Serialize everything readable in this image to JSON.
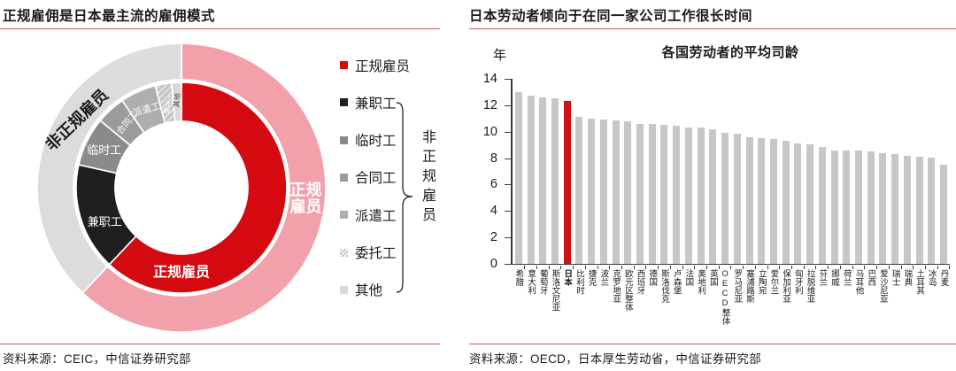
{
  "left_panel": {
    "title": "正规雇佣是日本最主流的雇佣模式",
    "source": "资料来源：CEIC，中信证券研究部"
  },
  "right_panel": {
    "title": "日本劳动者倾向于在同一家公司工作很长时间",
    "source": "资料来源：OECD，日本厚生劳动省，中信证券研究部"
  },
  "chart_data": [
    {
      "type": "donut",
      "description": "日本雇佣结构双层环形图（内外环，单位：占比%估算）",
      "outer_ring": [
        {
          "label": "正规雇员",
          "value": 62,
          "color": "#f2a1ab"
        },
        {
          "label": "非正规雇员",
          "value": 38,
          "color": "#dcdcdc"
        }
      ],
      "inner_ring": [
        {
          "label": "正规雇员",
          "value": 62,
          "color": "#d40a10"
        },
        {
          "label": "兼职工",
          "value": 16.5,
          "color": "#1f1f1f"
        },
        {
          "label": "临时工",
          "value": 7.5,
          "color": "#8a8a8a"
        },
        {
          "label": "合同工",
          "value": 4.5,
          "color": "#9b9b9b"
        },
        {
          "label": "派遣工",
          "value": 5.5,
          "color": "#aeaeae"
        },
        {
          "label": "委托工",
          "value": 2.5,
          "color": "#c6c6c6",
          "hatched": true
        },
        {
          "label": "其他",
          "value": 1.5,
          "color": "#d8d8d8"
        }
      ],
      "legend": {
        "items": [
          {
            "label": "正规雇员",
            "color": "#d40a10"
          },
          {
            "label": "兼职工",
            "color": "#1f1f1f"
          },
          {
            "label": "临时工",
            "color": "#8a8a8a"
          },
          {
            "label": "合同工",
            "color": "#9b9b9b"
          },
          {
            "label": "派遣工",
            "color": "#aeaeae"
          },
          {
            "label": "委托工",
            "color": "#c6c6c6",
            "hatched": true
          },
          {
            "label": "其他",
            "color": "#d8d8d8"
          }
        ],
        "group_label": "非正规雇员"
      }
    },
    {
      "type": "bar",
      "title": "各国劳动者的平均司龄",
      "ylabel": "年",
      "ylim": [
        0,
        14
      ],
      "yticks": [
        0,
        2,
        4,
        6,
        8,
        10,
        12,
        14
      ],
      "grid": false,
      "legend_position": "none",
      "categories": [
        "希腊",
        "意大利",
        "葡萄牙",
        "斯洛文尼亚",
        "日本",
        "比利时",
        "捷克",
        "波兰",
        "克罗地亚",
        "欧元区整体",
        "西班牙",
        "德国",
        "斯洛伐克",
        "卢森堡",
        "法国",
        "奥地利",
        "英国",
        "OECD整体",
        "罗马尼亚",
        "塞浦路斯",
        "立陶宛",
        "爱尔兰",
        "保加利亚",
        "匈牙利",
        "拉脱维亚",
        "芬兰",
        "挪威",
        "荷兰",
        "马耳他",
        "巴西",
        "爱沙尼亚",
        "瑞士",
        "瑞典",
        "土耳其",
        "冰岛",
        "丹麦"
      ],
      "values": [
        13.0,
        12.7,
        12.6,
        12.5,
        12.3,
        11.1,
        11.0,
        10.9,
        10.85,
        10.8,
        10.6,
        10.6,
        10.55,
        10.45,
        10.3,
        10.3,
        10.15,
        9.9,
        9.85,
        9.55,
        9.5,
        9.45,
        9.3,
        9.1,
        9.05,
        8.85,
        8.6,
        8.6,
        8.55,
        8.5,
        8.35,
        8.3,
        8.2,
        8.1,
        8.05,
        7.5
      ],
      "highlight_category": "日本",
      "highlight_index": 4,
      "bar_color": "#c7c7c7",
      "highlight_color": "#cf1118"
    }
  ]
}
